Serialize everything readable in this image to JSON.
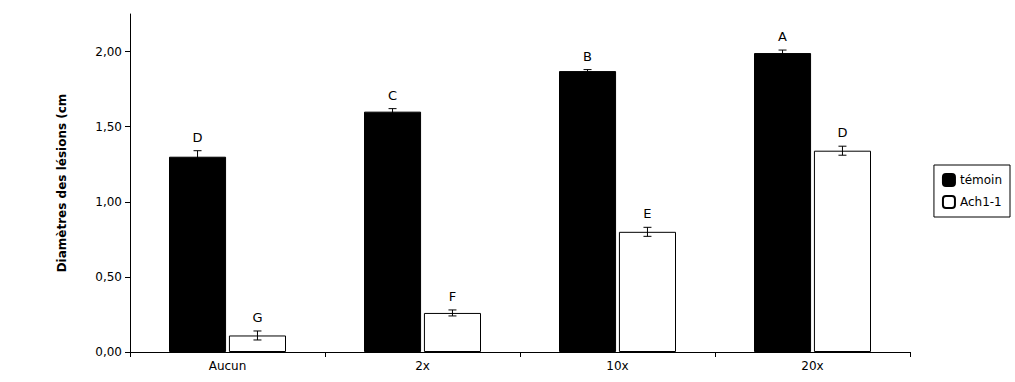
{
  "chart_data": {
    "type": "bar",
    "y_label": "Diamètres des lésions (cm",
    "categories": [
      "Aucun",
      "2x",
      "10x",
      "20x"
    ],
    "series": [
      {
        "name": "témoin",
        "color": "#000000",
        "values": [
          1.3,
          1.6,
          1.87,
          1.99
        ],
        "errors": [
          0.04,
          0.02,
          0.01,
          0.02
        ],
        "letters": [
          "D",
          "C",
          "B",
          "A"
        ]
      },
      {
        "name": "Ach1-1",
        "color": "#ffffff",
        "values": [
          0.11,
          0.26,
          0.8,
          1.34
        ],
        "errors": [
          0.03,
          0.02,
          0.03,
          0.03
        ],
        "letters": [
          "G",
          "F",
          "E",
          "D"
        ]
      }
    ],
    "ylim": [
      0,
      2.25
    ],
    "yticks": [
      {
        "value": 0,
        "label": "0,00"
      },
      {
        "value": 0.5,
        "label": "0,50"
      },
      {
        "value": 1,
        "label": "1,00"
      },
      {
        "value": 1.5,
        "label": "1,50"
      },
      {
        "value": 2,
        "label": "2,00"
      }
    ],
    "grid": false,
    "legend": "right"
  }
}
